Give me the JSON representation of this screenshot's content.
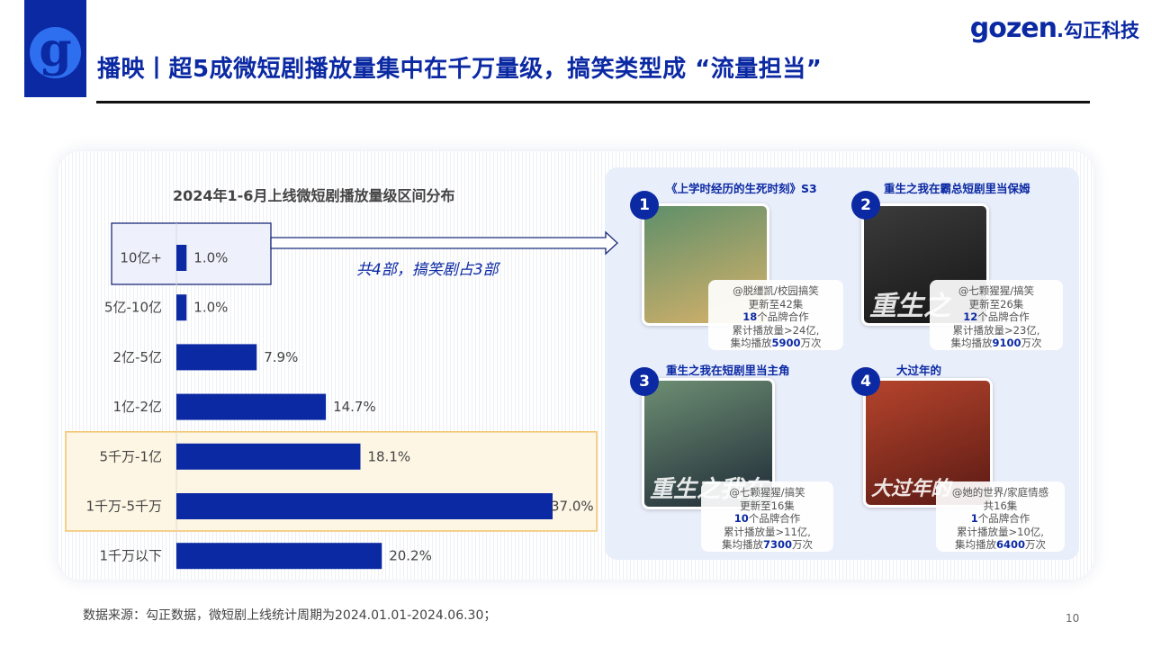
{
  "header": {
    "logo_glyph": "g",
    "title": "播映丨超5成微短剧播放量集中在千万量级，搞笑类型成 “流量担当”",
    "brand_latin": "gozen",
    "brand_cn": ".勾正科技"
  },
  "chart_data": {
    "type": "bar",
    "orientation": "horizontal",
    "title": "2024年1-6月上线微短剧播放量级区间分布",
    "categories": [
      "10亿+",
      "5亿-10亿",
      "2亿-5亿",
      "1亿-2亿",
      "5千万-1亿",
      "1千万-5千万",
      "1千万以下"
    ],
    "values": [
      1.0,
      1.0,
      7.9,
      14.7,
      18.1,
      37.0,
      20.2
    ],
    "value_labels": [
      "1.0%",
      "1.0%",
      "7.9%",
      "14.7%",
      "18.1%",
      "37.0%",
      "20.2%"
    ],
    "unit": "%",
    "bar_color": "#0b29a3",
    "highlight_categories": [
      "5千万-1亿",
      "1千万-5千万"
    ],
    "highlight_color": "#f2c46b",
    "xlim": [
      0,
      37.0
    ],
    "grid": false
  },
  "callout_text": "共4部，搞笑剧占3部",
  "shows": [
    {
      "num": "1",
      "title": "《上学时经历的生死时刻》S3",
      "poster_text": "",
      "line1": "@脱缰凯/校园搞笑",
      "line2": "更新至42集",
      "brands_count": "18",
      "brands_suffix": "个品牌合作",
      "line4": "累计播放量>24亿,",
      "avg_prefix": "集均播放",
      "avg_value": "5900",
      "avg_suffix": "万次",
      "poster_colors": [
        "#5f8f6a",
        "#d8b26a"
      ]
    },
    {
      "num": "2",
      "title": "重生之我在霸总短剧里当保姆",
      "poster_text": "重生之",
      "line1": "@七颗猩猩/搞笑",
      "line2": "更新至26集",
      "brands_count": "12",
      "brands_suffix": "个品牌合作",
      "line4": "累计播放量>23亿,",
      "avg_prefix": "集均播放",
      "avg_value": "9100",
      "avg_suffix": "万次",
      "poster_colors": [
        "#3b3b3b",
        "#151515"
      ]
    },
    {
      "num": "3",
      "title": "重生之我在短剧里当主角",
      "poster_text": "重生之我在",
      "line1": "@七颗猩猩/搞笑",
      "line2": "更新至16集",
      "brands_count": "10",
      "brands_suffix": "个品牌合作",
      "line4": "累计播放量>11亿,",
      "avg_prefix": "集均播放",
      "avg_value": "7300",
      "avg_suffix": "万次",
      "poster_colors": [
        "#6d8e73",
        "#1e2a36"
      ]
    },
    {
      "num": "4",
      "title": "大过年的",
      "poster_text": "大过年的",
      "line1": "@她的世界/家庭情感",
      "line2": "共16集",
      "brands_count": "1",
      "brands_suffix": "个品牌合作",
      "line4": "累计播放量>10亿,",
      "avg_prefix": "集均播放",
      "avg_value": "6400",
      "avg_suffix": "万次",
      "poster_colors": [
        "#b5442c",
        "#5a1a14"
      ]
    }
  ],
  "footnote": "数据来源：勾正数据，微短剧上线统计周期为2024.01.01-2024.06.30；",
  "page_number": "10"
}
